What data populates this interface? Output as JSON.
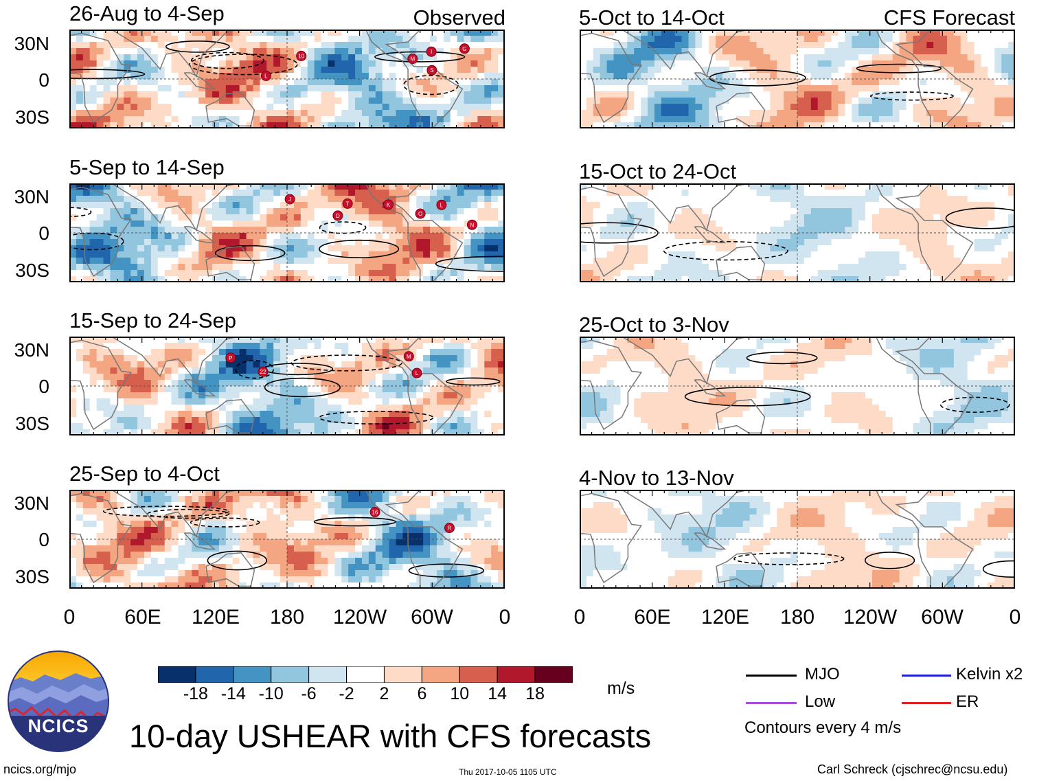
{
  "figure": {
    "title": "10-day USHEAR with CFS forecasts",
    "units": "m/s",
    "observed_label": "Observed",
    "forecast_label": "CFS Forecast"
  },
  "chart_data": {
    "type": "heatmap",
    "title": "10-day USHEAR with CFS forecasts",
    "variable": "USHEAR",
    "units": "m/s",
    "grid": true,
    "x_axis": {
      "ticks": [
        "0",
        "60E",
        "120E",
        "180",
        "120W",
        "60W",
        "0"
      ],
      "range": [
        0,
        360
      ]
    },
    "y_axis": {
      "ticks": [
        "30N",
        "0",
        "30S"
      ],
      "range": [
        -40,
        40
      ]
    },
    "colorbar": {
      "ticks": [
        "-18",
        "-14",
        "-10",
        "-6",
        "-2",
        "2",
        "6",
        "10",
        "14",
        "18"
      ],
      "colors": [
        "#08306b",
        "#2166ac",
        "#4393c3",
        "#92c5de",
        "#d1e5f0",
        "#ffffff",
        "#fddbc7",
        "#f4a582",
        "#d6604d",
        "#b2182b",
        "#67001f"
      ]
    },
    "panels": [
      {
        "id": "p1",
        "period": "26-Aug to 4-Sep",
        "type": "Observed",
        "storms": [
          "M",
          "G",
          "S",
          "L",
          "10",
          "I"
        ]
      },
      {
        "id": "p2",
        "period": "5-Sep to 14-Sep",
        "type": "Observed",
        "storms": [
          "D",
          "T",
          "O",
          "N",
          "K",
          "J",
          "L"
        ]
      },
      {
        "id": "p3",
        "period": "15-Sep to 24-Sep",
        "type": "Observed",
        "storms": [
          "22",
          "P",
          "M",
          "L"
        ]
      },
      {
        "id": "p4",
        "period": "25-Sep to 4-Oct",
        "type": "Observed",
        "storms": [
          "R",
          "16"
        ]
      },
      {
        "id": "p5",
        "period": "5-Oct to 14-Oct",
        "type": "CFS Forecast",
        "storms": []
      },
      {
        "id": "p6",
        "period": "15-Oct to 24-Oct",
        "type": "CFS Forecast",
        "storms": []
      },
      {
        "id": "p7",
        "period": "25-Oct to 3-Nov",
        "type": "CFS Forecast",
        "storms": []
      },
      {
        "id": "p8",
        "period": "4-Nov to 13-Nov",
        "type": "CFS Forecast",
        "storms": []
      }
    ],
    "legend": {
      "items": [
        {
          "name": "MJO",
          "color": "#000000"
        },
        {
          "name": "Kelvin x2",
          "color": "#1f1fd6"
        },
        {
          "name": "Low",
          "color": "#a64ddb"
        },
        {
          "name": "ER",
          "color": "#e02020"
        }
      ],
      "note": "Contours every 4 m/s"
    }
  },
  "footer": {
    "left": "ncics.org/mjo",
    "center": "Thu 2017-10-05 1105 UTC",
    "right": "Carl Schreck (cjschrec@ncsu.edu)"
  },
  "logo": {
    "text": "NCICS"
  }
}
